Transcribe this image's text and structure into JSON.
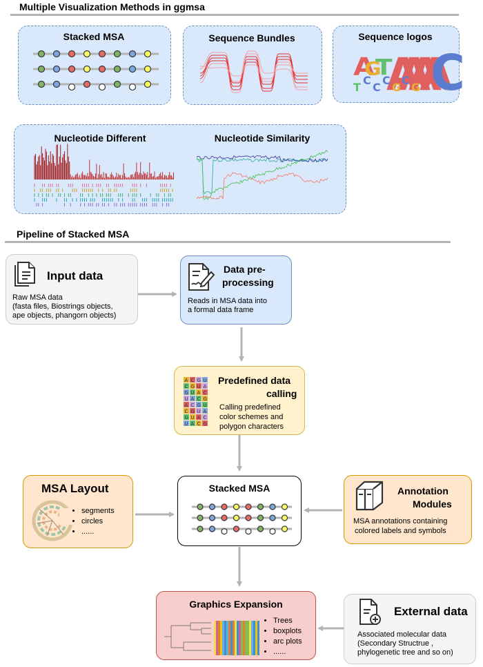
{
  "section1_title": "Multiple Visualization Methods in ggmsa",
  "section2_title": "Pipeline of Stacked MSA",
  "methods": {
    "stacked_msa": "Stacked MSA",
    "sequence_bundles": "Sequence Bundles",
    "sequence_logos": "Sequence logos",
    "nucleotide_different": "Nucleotide Different",
    "nucleotide_similarity": "Nucleotide Similarity",
    "logo_letters": [
      "A",
      "G",
      "T",
      "A",
      "A",
      "A",
      "A",
      "C"
    ],
    "logo_lower_letters": [
      "T",
      "C",
      "C",
      "C",
      "G",
      "C",
      "G"
    ]
  },
  "pipeline": {
    "input": {
      "title": "Input data",
      "desc": [
        "Raw MSA data",
        "(fasta files, Biostrings objects,",
        "ape objects, phangorn objects)"
      ]
    },
    "preprocess": {
      "title_line1": "Data pre-",
      "title_line2": "processing",
      "desc": [
        "Reads in MSA data into",
        "a formal data frame"
      ]
    },
    "predefined": {
      "title_line1": "Predefined data",
      "title_line2": "calling",
      "desc": [
        "Calling predefined",
        "color schemes and",
        "polygon characters"
      ]
    },
    "layout": {
      "title": "MSA Layout",
      "items": [
        "segments",
        "circles",
        "......"
      ]
    },
    "stacked": {
      "title": "Stacked MSA"
    },
    "annotation": {
      "title_line1": "Annotation",
      "title_line2": "Modules",
      "desc": [
        "MSA annotations containing",
        "colored labels and symbols"
      ]
    },
    "graphics": {
      "title": "Graphics Expansion",
      "items": [
        "Trees",
        "boxplots",
        "arc plots",
        "......"
      ]
    },
    "external": {
      "title": "External data",
      "desc": [
        "Associated molecular data",
        "(Secondary Structrue ,",
        "phylogenetic tree and so on)"
      ]
    }
  },
  "colors": {
    "dot_green": "#82b366",
    "dot_blue": "#7ea6e0",
    "dot_red": "#ea6b66",
    "dot_yellow": "#ffff66",
    "dot_white": "#ffffff",
    "arrow": "#b3b3b3"
  }
}
